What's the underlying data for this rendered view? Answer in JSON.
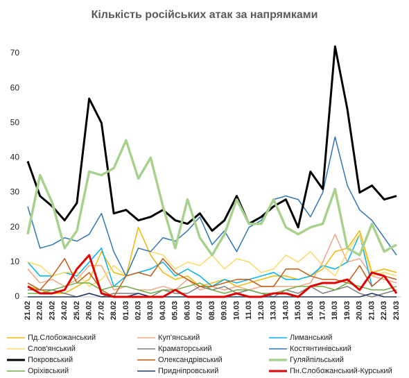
{
  "chart_data": {
    "type": "line",
    "title": "Кількість російських атак за напрямками",
    "categories": [
      "21.02",
      "22.02",
      "23.02",
      "24.02",
      "25.02",
      "26.02",
      "27.02",
      "28.02",
      "01.03",
      "02.03",
      "03.03",
      "04.03",
      "05.03",
      "06.03",
      "07.03",
      "08.03",
      "09.03",
      "10.03",
      "11.03",
      "12.03",
      "13.03",
      "14.03",
      "15.03",
      "16.03",
      "17.03",
      "18.03",
      "19.03",
      "20.03",
      "21.03",
      "22.03",
      "23.03"
    ],
    "ylim": [
      0,
      70
    ],
    "yticks": [
      0,
      10,
      20,
      30,
      40,
      50,
      60,
      70
    ],
    "grid": false,
    "series": [
      {
        "name": "Пд.Слобожанський",
        "color": "#f2b705",
        "width": 1.5,
        "values": [
          3,
          2,
          1,
          1,
          3,
          5,
          13,
          7,
          6,
          20,
          12,
          7,
          5,
          6,
          3,
          4,
          5,
          3,
          4,
          5,
          6,
          6,
          5,
          6,
          8,
          13,
          14,
          19,
          7,
          8,
          7
        ]
      },
      {
        "name": "Куп'янський",
        "color": "#f4a582",
        "width": 1.5,
        "values": [
          8,
          4,
          5,
          3,
          5,
          9,
          9,
          2,
          3,
          2,
          2,
          3,
          2,
          5,
          2,
          3,
          2,
          3,
          2,
          3,
          3,
          3,
          3,
          4,
          10,
          18,
          10,
          11,
          6,
          5,
          4
        ]
      },
      {
        "name": "Лиманський",
        "color": "#00b0f0",
        "width": 1.5,
        "values": [
          10,
          6,
          6,
          7,
          6,
          10,
          14,
          3,
          6,
          7,
          8,
          10,
          6,
          8,
          6,
          3,
          5,
          4,
          5,
          6,
          7,
          5,
          5,
          6,
          9,
          8,
          10,
          18,
          3,
          6,
          5
        ]
      },
      {
        "name": "Слов'янський",
        "color": "#ffd966",
        "width": 1.5,
        "values": [
          10,
          9,
          6,
          7,
          7,
          3,
          5,
          9,
          6,
          14,
          13,
          12,
          8,
          10,
          9,
          12,
          8,
          11,
          10,
          7,
          8,
          12,
          10,
          13,
          9,
          6,
          13,
          18,
          6,
          7,
          6
        ]
      },
      {
        "name": "Краматорський",
        "color": "#7f7f7f",
        "width": 1.5,
        "values": [
          2,
          2,
          2,
          1,
          0,
          1,
          0,
          1,
          1,
          1,
          0,
          2,
          1,
          1,
          3,
          2,
          3,
          1,
          2,
          1,
          0,
          2,
          1,
          3,
          1,
          2,
          3,
          1,
          0,
          1,
          2
        ]
      },
      {
        "name": "Костянтинівський",
        "color": "#2e75b6",
        "width": 1.5,
        "values": [
          26,
          14,
          15,
          17,
          16,
          18,
          24,
          13,
          6,
          14,
          13,
          17,
          16,
          19,
          23,
          15,
          19,
          13,
          20,
          22,
          28,
          29,
          28,
          23,
          30,
          46,
          32,
          25,
          22,
          17,
          12
        ]
      },
      {
        "name": "Покровський",
        "color": "#000000",
        "width": 3,
        "values": [
          39,
          29,
          26,
          22,
          27,
          57,
          50,
          24,
          25,
          22,
          23,
          25,
          22,
          21,
          24,
          19,
          22,
          29,
          21,
          23,
          26,
          28,
          20,
          36,
          31,
          72,
          54,
          30,
          32,
          28,
          29
        ]
      },
      {
        "name": "Олександрівський",
        "color": "#c55a11",
        "width": 1.5,
        "values": [
          4,
          2,
          6,
          11,
          4,
          7,
          2,
          0,
          6,
          7,
          6,
          11,
          7,
          5,
          3,
          3,
          4,
          5,
          5,
          3,
          3,
          8,
          8,
          6,
          5,
          5,
          4,
          9,
          3,
          6,
          5
        ]
      },
      {
        "name": "Гуляйпільський",
        "color": "#a9d18e",
        "width": 3.5,
        "values": [
          18,
          35,
          27,
          14,
          19,
          36,
          35,
          37,
          45,
          34,
          40,
          26,
          14,
          28,
          17,
          12,
          18,
          28,
          21,
          21,
          28,
          20,
          18,
          20,
          21,
          31,
          14,
          12,
          21,
          13,
          15
        ]
      },
      {
        "name": "Оріхівський",
        "color": "#70ad47",
        "width": 1.5,
        "values": [
          1,
          1,
          2,
          3,
          4,
          4,
          2,
          3,
          3,
          2,
          1,
          2,
          2,
          3,
          4,
          2,
          1,
          2,
          2,
          1,
          1,
          2,
          3,
          3,
          3,
          2,
          4,
          3,
          2,
          2,
          3
        ]
      },
      {
        "name": "Придніпровський",
        "color": "#203864",
        "width": 1.5,
        "values": [
          0,
          0,
          0,
          0,
          0,
          1,
          0,
          0,
          0,
          1,
          0,
          0,
          0,
          0,
          0,
          0,
          0,
          0,
          0,
          0,
          0,
          0,
          0,
          0,
          0,
          0,
          0,
          0,
          1,
          0,
          0
        ]
      },
      {
        "name": "Пн.Слобожанський-Курський",
        "color": "#e00000",
        "width": 3,
        "values": [
          3,
          1,
          1,
          2,
          8,
          12,
          1,
          0,
          0,
          0,
          0,
          0,
          2,
          0,
          0,
          0,
          0,
          1,
          0,
          0,
          1,
          1,
          0,
          3,
          4,
          4,
          5,
          2,
          7,
          6,
          1
        ]
      }
    ]
  }
}
